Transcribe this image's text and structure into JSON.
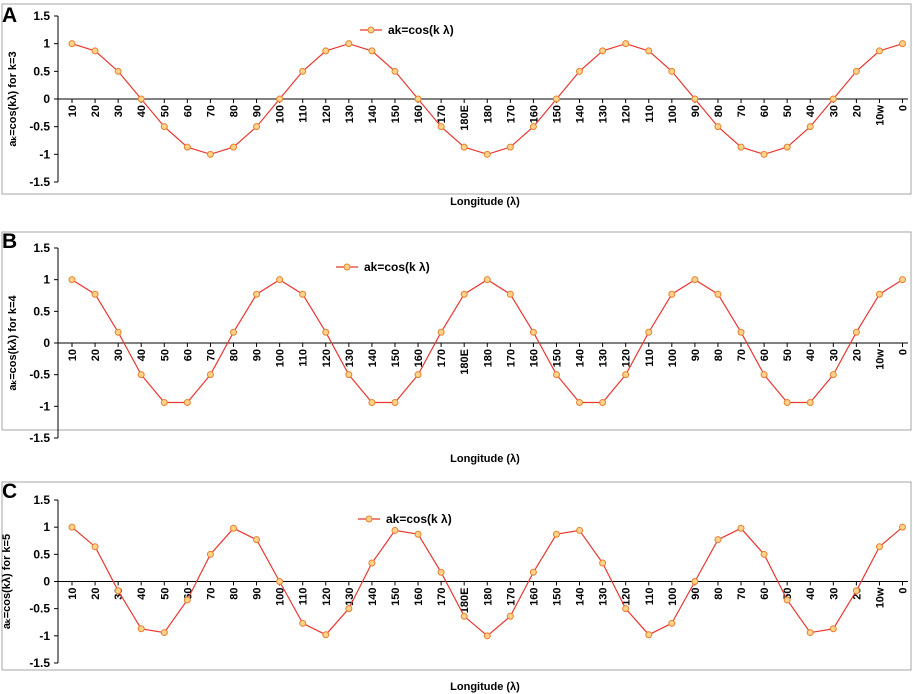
{
  "chart_data": [
    {
      "panel": "A",
      "type": "line",
      "xlabel": "Longitude (λ)",
      "ylabel": "aₖ=cos(kλ) for k=3",
      "ylim": [
        -1.5,
        1.5
      ],
      "yticks": [
        1.5,
        1,
        0.5,
        0,
        -0.5,
        -1,
        -1.5
      ],
      "grid": false,
      "legend_position": "top-center",
      "categories": [
        "10",
        "20",
        "30",
        "40",
        "50",
        "60",
        "70",
        "80",
        "90",
        "100",
        "110",
        "120",
        "130",
        "140",
        "150",
        "160",
        "170",
        "180E",
        "180",
        "170",
        "160",
        "150",
        "140",
        "130",
        "120",
        "110",
        "100",
        "90",
        "80",
        "70",
        "60",
        "50",
        "40",
        "30",
        "20",
        "10w",
        "0"
      ],
      "series": [
        {
          "name": "ak=cos(k λ)",
          "color": "#e8382f",
          "marker_fill": "#fbd38a",
          "values": [
            1.0,
            0.87,
            0.5,
            0.0,
            -0.5,
            -0.87,
            -1.0,
            -0.87,
            -0.5,
            0.0,
            0.5,
            0.87,
            1.0,
            0.87,
            0.5,
            0.0,
            -0.5,
            -0.87,
            -1.0,
            -0.87,
            -0.5,
            0.0,
            0.5,
            0.87,
            1.0,
            0.87,
            0.5,
            0.0,
            -0.5,
            -0.87,
            -1.0,
            -0.87,
            -0.5,
            0.0,
            0.5,
            0.87,
            1.0
          ]
        }
      ]
    },
    {
      "panel": "B",
      "type": "line",
      "xlabel": "Longitude (λ)",
      "ylabel": "aₖ=cos(kλ) for k=4",
      "ylim": [
        -1.5,
        1.5
      ],
      "yticks": [
        1.5,
        1,
        0.5,
        0,
        -0.5,
        -1,
        -1.5
      ],
      "grid": false,
      "legend_position": "top-center",
      "categories": [
        "10",
        "20",
        "30",
        "40",
        "50",
        "60",
        "70",
        "80",
        "90",
        "100",
        "110",
        "120",
        "130",
        "140",
        "150",
        "160",
        "170",
        "180E",
        "180",
        "170",
        "160",
        "150",
        "140",
        "130",
        "120",
        "110",
        "100",
        "90",
        "80",
        "70",
        "60",
        "50",
        "40",
        "30",
        "20",
        "10w",
        "0"
      ],
      "series": [
        {
          "name": "ak=cos(k λ)",
          "color": "#e8382f",
          "marker_fill": "#fbd38a",
          "values": [
            1.0,
            0.77,
            0.17,
            -0.5,
            -0.94,
            -0.94,
            -0.5,
            0.17,
            0.77,
            1.0,
            0.77,
            0.17,
            -0.5,
            -0.94,
            -0.94,
            -0.5,
            0.17,
            0.77,
            1.0,
            0.77,
            0.17,
            -0.5,
            -0.94,
            -0.94,
            -0.5,
            0.17,
            0.77,
            1.0,
            0.77,
            0.17,
            -0.5,
            -0.94,
            -0.94,
            -0.5,
            0.17,
            0.77,
            1.0
          ]
        }
      ]
    },
    {
      "panel": "C",
      "type": "line",
      "xlabel": "Longitude (λ)",
      "ylabel": "aₖ=cos(kλ) for k=5",
      "ylim": [
        -1.5,
        1.5
      ],
      "yticks": [
        1.5,
        1,
        0.5,
        0,
        -0.5,
        -1,
        -1.5
      ],
      "grid": false,
      "legend_position": "top-center",
      "categories": [
        "10",
        "20",
        "30",
        "40",
        "50",
        "60",
        "70",
        "80",
        "90",
        "100",
        "110",
        "120",
        "130",
        "140",
        "150",
        "160",
        "170",
        "180E",
        "180",
        "170",
        "160",
        "150",
        "140",
        "130",
        "120",
        "110",
        "100",
        "90",
        "80",
        "70",
        "60",
        "50",
        "40",
        "30",
        "20",
        "10w",
        "0"
      ],
      "series": [
        {
          "name": "ak=cos(k λ)",
          "color": "#e8382f",
          "marker_fill": "#fbd38a",
          "values": [
            1.0,
            0.64,
            -0.17,
            -0.87,
            -0.94,
            -0.34,
            0.5,
            0.98,
            0.77,
            0.0,
            -0.77,
            -0.98,
            -0.5,
            0.34,
            0.94,
            0.87,
            0.17,
            -0.64,
            -1.0,
            -0.64,
            0.17,
            0.87,
            0.94,
            0.34,
            -0.5,
            -0.98,
            -0.77,
            0.0,
            0.77,
            0.98,
            0.5,
            -0.34,
            -0.94,
            -0.87,
            -0.17,
            0.64,
            1.0
          ]
        }
      ]
    }
  ]
}
